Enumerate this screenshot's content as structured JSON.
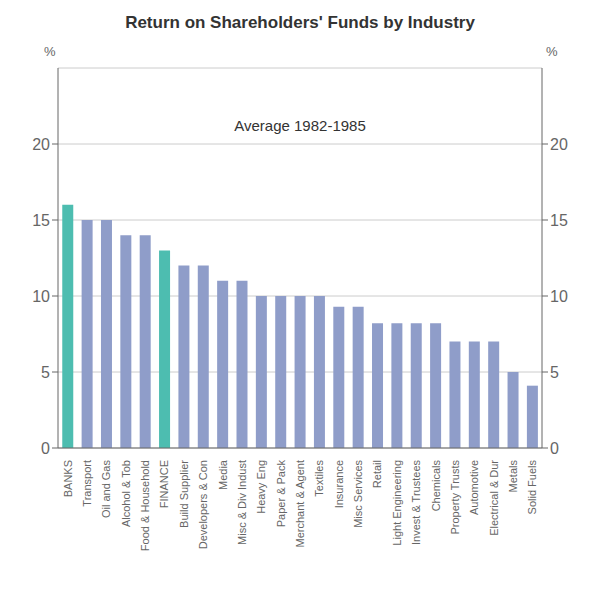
{
  "chart_data": {
    "type": "bar",
    "title": "Return on Shareholders' Funds by Industry",
    "subtitle": "Average 1982-1985",
    "categories": [
      "BANKS",
      "Transport",
      "Oil and Gas",
      "Alcohol & Tob",
      "Food & Household",
      "FINANCE",
      "Build Supplier",
      "Developers & Con",
      "Media",
      "Misc & Div Indust",
      "Heavy Eng",
      "Paper & Pack",
      "Merchant & Agent",
      "Textiles",
      "Insurance",
      "Misc Services",
      "Retail",
      "Light Engineering",
      "Invest & Trustees",
      "Chemicals",
      "Property Trusts",
      "Automotive",
      "Electrical & Dur",
      "Metals",
      "Solid Fuels"
    ],
    "values": [
      16.0,
      15.0,
      15.0,
      14.0,
      14.0,
      13.0,
      12.0,
      12.0,
      11.0,
      11.0,
      10.0,
      10.0,
      10.0,
      10.0,
      9.3,
      9.3,
      8.2,
      8.2,
      8.2,
      8.2,
      7.0,
      7.0,
      7.0,
      5.0,
      4.1
    ],
    "colors": [
      "#4DBDB0",
      "#8F9DC9",
      "#8F9DC9",
      "#8F9DC9",
      "#8F9DC9",
      "#4DBDB0",
      "#8F9DC9",
      "#8F9DC9",
      "#8F9DC9",
      "#8F9DC9",
      "#8F9DC9",
      "#8F9DC9",
      "#8F9DC9",
      "#8F9DC9",
      "#8F9DC9",
      "#8F9DC9",
      "#8F9DC9",
      "#8F9DC9",
      "#8F9DC9",
      "#8F9DC9",
      "#8F9DC9",
      "#8F9DC9",
      "#8F9DC9",
      "#8F9DC9",
      "#8F9DC9"
    ],
    "ylabel": "%",
    "y2label": "%",
    "ylim": [
      0,
      25
    ],
    "yticks": [
      0,
      5,
      10,
      15,
      20
    ],
    "y2lim": [
      0,
      25
    ],
    "y2ticks": [
      0,
      5,
      10,
      15,
      20
    ],
    "grid": true
  }
}
